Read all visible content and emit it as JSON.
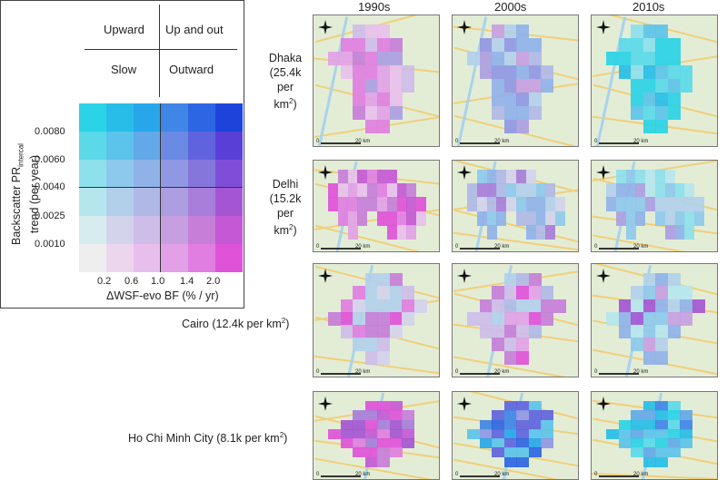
{
  "legend": {
    "quadrants": {
      "top_left": "Upward",
      "top_right": "Up and out",
      "bottom_left": "Slow",
      "bottom_right": "Outward"
    },
    "y_axis_label_main": "Backscatter PR",
    "y_axis_label_sub": "intercal",
    "y_axis_label_rest": "trend (per year)",
    "y_ticks": [
      "0.0080",
      "0.0060",
      "0.0040",
      "0.0025",
      "0.0010"
    ],
    "x_ticks": [
      "0.2",
      "0.6",
      "1.0",
      "1.4",
      "2.0"
    ],
    "x_axis_label": "ΔWSF-evo BF (% / yr)",
    "colors": [
      [
        "#2ad3e6",
        "#27bde8",
        "#27a6ea",
        "#3f86e6",
        "#2d66e2",
        "#1c44db"
      ],
      [
        "#5bd9e9",
        "#5cc3ea",
        "#63a8e8",
        "#6a8ae3",
        "#5f64de",
        "#5a3fd6"
      ],
      [
        "#8de0ec",
        "#8dc9ec",
        "#8fb2e9",
        "#9097e3",
        "#8576dc",
        "#7f4ed8"
      ],
      [
        "#b5e6ee",
        "#b2d0ea",
        "#b0b9e6",
        "#ad9ee2",
        "#a77ed9",
        "#a456d2"
      ],
      [
        "#d6ecee",
        "#d3d3ec",
        "#cdbde8",
        "#c79fe0",
        "#c67ed9",
        "#c559d5"
      ],
      [
        "#eeeeee",
        "#ecd6ee",
        "#e8bfec",
        "#e2a1e6",
        "#e07fe1",
        "#df53d9"
      ]
    ]
  },
  "decades": [
    "1990s",
    "2000s",
    "2010s"
  ],
  "cities": [
    {
      "name": "Dhaka",
      "lines": [
        "Dhaka",
        "(25.4k",
        "per",
        "km",
        "2",
        ")"
      ]
    },
    {
      "name": "Delhi",
      "lines": [
        "Delhi",
        "(15.2k",
        "per",
        "km",
        "2",
        ")"
      ]
    },
    {
      "name": "Cairo",
      "label": "Cairo (12.4k per km",
      "sup": "2",
      "close": ")"
    },
    {
      "name": "Ho Chi Minh City",
      "label": "Ho Chi Minh City (8.1k per km",
      "sup": "2",
      "close": ")"
    }
  ],
  "scale": {
    "zero": "0",
    "dist": "20 km"
  },
  "map_colors": {
    "map_bg": "#e3edd6",
    "road": "#f0cf7a",
    "river": "#a9d3ec"
  }
}
